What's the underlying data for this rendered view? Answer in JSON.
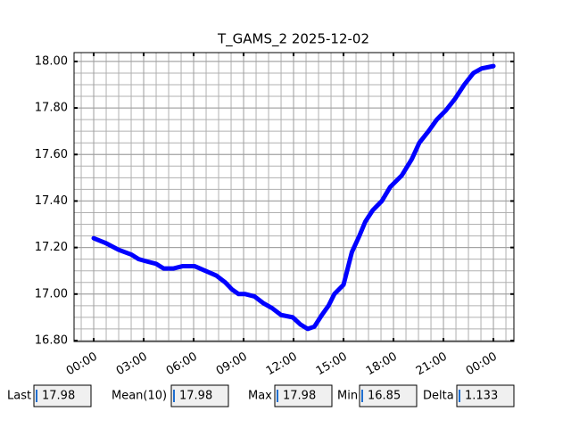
{
  "chart_data": {
    "type": "line",
    "title": "T_GAMS_2 2025-12-02",
    "x": [
      0,
      0.7,
      1.5,
      2.25,
      2.7,
      3.2,
      3.75,
      4.2,
      4.8,
      5.35,
      6.05,
      6.7,
      7.35,
      7.9,
      8.3,
      8.7,
      9.1,
      9.65,
      10.2,
      10.7,
      11.25,
      11.95,
      12.4,
      12.85,
      13.25,
      13.7,
      14.1,
      14.45,
      15.0,
      15.25,
      15.5,
      15.95,
      16.3,
      16.75,
      17.3,
      17.8,
      18.5,
      19.1,
      19.55,
      20.1,
      20.6,
      21.15,
      21.7,
      22.25,
      22.8,
      23.3,
      24.0
    ],
    "series": [
      {
        "name": "T_GAMS_2",
        "color": "#0000ff",
        "values": [
          17.24,
          17.22,
          17.19,
          17.17,
          17.15,
          17.14,
          17.13,
          17.11,
          17.11,
          17.12,
          17.12,
          17.1,
          17.08,
          17.05,
          17.02,
          17.0,
          17.0,
          16.99,
          16.96,
          16.94,
          16.91,
          16.9,
          16.87,
          16.85,
          16.86,
          16.91,
          16.95,
          17.0,
          17.04,
          17.11,
          17.18,
          17.25,
          17.31,
          17.36,
          17.4,
          17.46,
          17.51,
          17.58,
          17.65,
          17.7,
          17.75,
          17.79,
          17.84,
          17.9,
          17.95,
          17.97,
          17.98
        ]
      }
    ],
    "xlim": [
      -1.18,
      25.23
    ],
    "xticks": [
      {
        "value": 0,
        "label": "00:00"
      },
      {
        "value": 3,
        "label": "03:00"
      },
      {
        "value": 6,
        "label": "06:00"
      },
      {
        "value": 9,
        "label": "09:00"
      },
      {
        "value": 12,
        "label": "12:00"
      },
      {
        "value": 15,
        "label": "15:00"
      },
      {
        "value": 18,
        "label": "18:00"
      },
      {
        "value": 21,
        "label": "21:00"
      },
      {
        "value": 24,
        "label": "00:00"
      }
    ],
    "ylim": [
      16.796,
      18.038
    ],
    "yticks": [
      {
        "value": 16.8,
        "label": "16.80"
      },
      {
        "value": 17.0,
        "label": "17.00"
      },
      {
        "value": 17.2,
        "label": "17.20"
      },
      {
        "value": 17.4,
        "label": "17.40"
      },
      {
        "value": 17.6,
        "label": "17.60"
      },
      {
        "value": 17.8,
        "label": "17.80"
      },
      {
        "value": 18.0,
        "label": "18.00"
      }
    ],
    "grid": true,
    "minor_grid": true
  },
  "stats": [
    {
      "label": "Last",
      "value": 17.98
    },
    {
      "label": "Mean(10)",
      "value": 17.98
    },
    {
      "label": "Max",
      "value": 17.98
    },
    {
      "label": "Min",
      "value": 16.85
    },
    {
      "label": "Delta",
      "value": 1.133
    }
  ]
}
